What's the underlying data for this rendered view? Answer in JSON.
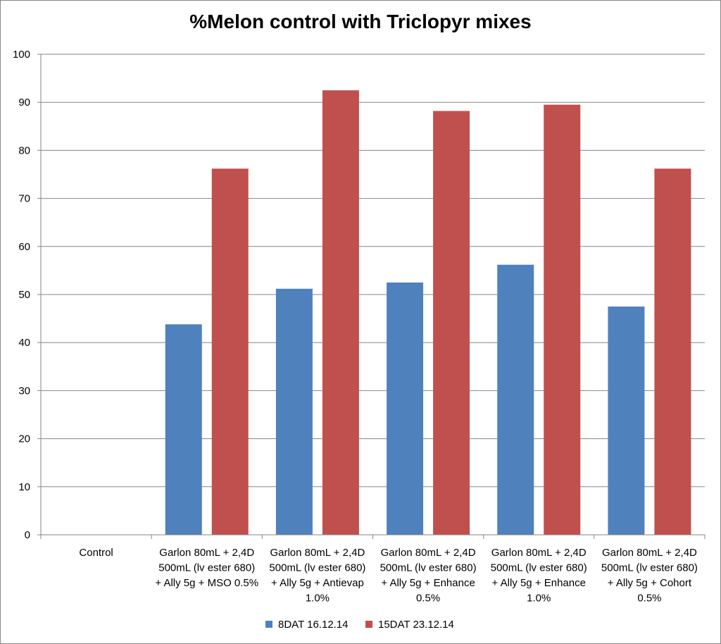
{
  "chart_data": {
    "type": "bar",
    "title": "%Melon control with Triclopyr mixes",
    "xlabel": "",
    "ylabel": "",
    "ylim": [
      0,
      100
    ],
    "yticks": [
      0,
      10,
      20,
      30,
      40,
      50,
      60,
      70,
      80,
      90,
      100
    ],
    "grid": true,
    "legend_position": "bottom",
    "categories": [
      [
        "Control"
      ],
      [
        "Garlon 80mL + 2,4D",
        "500mL (lv ester 680)",
        "+ Ally 5g + MSO 0.5%"
      ],
      [
        "Garlon 80mL + 2,4D",
        "500mL (lv ester 680)",
        "+ Ally 5g + Antievap",
        "1.0%"
      ],
      [
        "Garlon 80mL + 2,4D",
        "500mL (lv ester 680)",
        "+ Ally 5g + Enhance",
        "0.5%"
      ],
      [
        "Garlon 80mL + 2,4D",
        "500mL (lv ester 680)",
        "+ Ally 5g + Enhance",
        "1.0%"
      ],
      [
        "Garlon 80mL + 2,4D",
        "500mL (lv ester 680)",
        "+ Ally 5g + Cohort",
        "0.5%"
      ]
    ],
    "series": [
      {
        "name": "8DAT 16.12.14",
        "color": "#4F81BD",
        "values": [
          0,
          43.8,
          51.2,
          52.5,
          56.2,
          47.5
        ]
      },
      {
        "name": "15DAT 23.12.14",
        "color": "#C0504D",
        "values": [
          0,
          76.2,
          92.5,
          88.2,
          89.5,
          76.2
        ]
      }
    ]
  }
}
